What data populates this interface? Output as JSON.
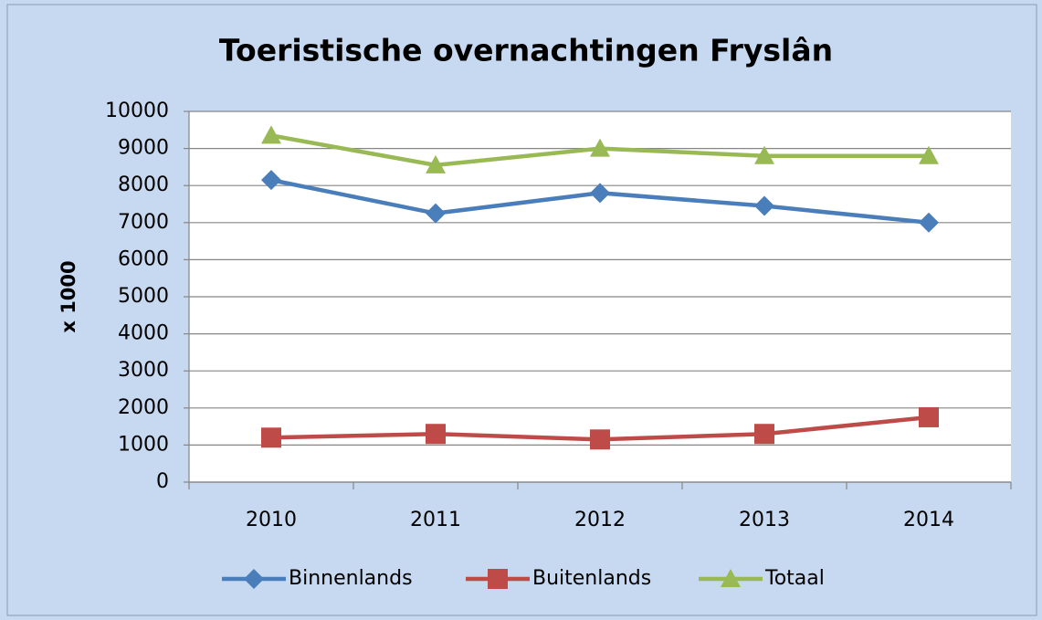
{
  "chart_data": {
    "type": "line",
    "title": "Toeristische overnachtingen Fryslân",
    "y_label": "x 1000",
    "categories": [
      "2010",
      "2011",
      "2012",
      "2013",
      "2014"
    ],
    "series": [
      {
        "name": "Binnenlands",
        "color": "#4a7ebb",
        "marker": "diamond",
        "values": [
          8150,
          7250,
          7800,
          7450,
          7000
        ]
      },
      {
        "name": "Buitenlands",
        "color": "#be4b48",
        "marker": "square",
        "values": [
          1200,
          1300,
          1150,
          1300,
          1750
        ]
      },
      {
        "name": "Totaal",
        "color": "#98b954",
        "marker": "triangle",
        "values": [
          9350,
          8550,
          9000,
          8800,
          8800
        ]
      }
    ],
    "ylim": [
      0,
      10000
    ],
    "yticks": [
      0,
      1000,
      2000,
      3000,
      4000,
      5000,
      6000,
      7000,
      8000,
      9000,
      10000
    ],
    "grid": true,
    "legend": "bottom"
  }
}
